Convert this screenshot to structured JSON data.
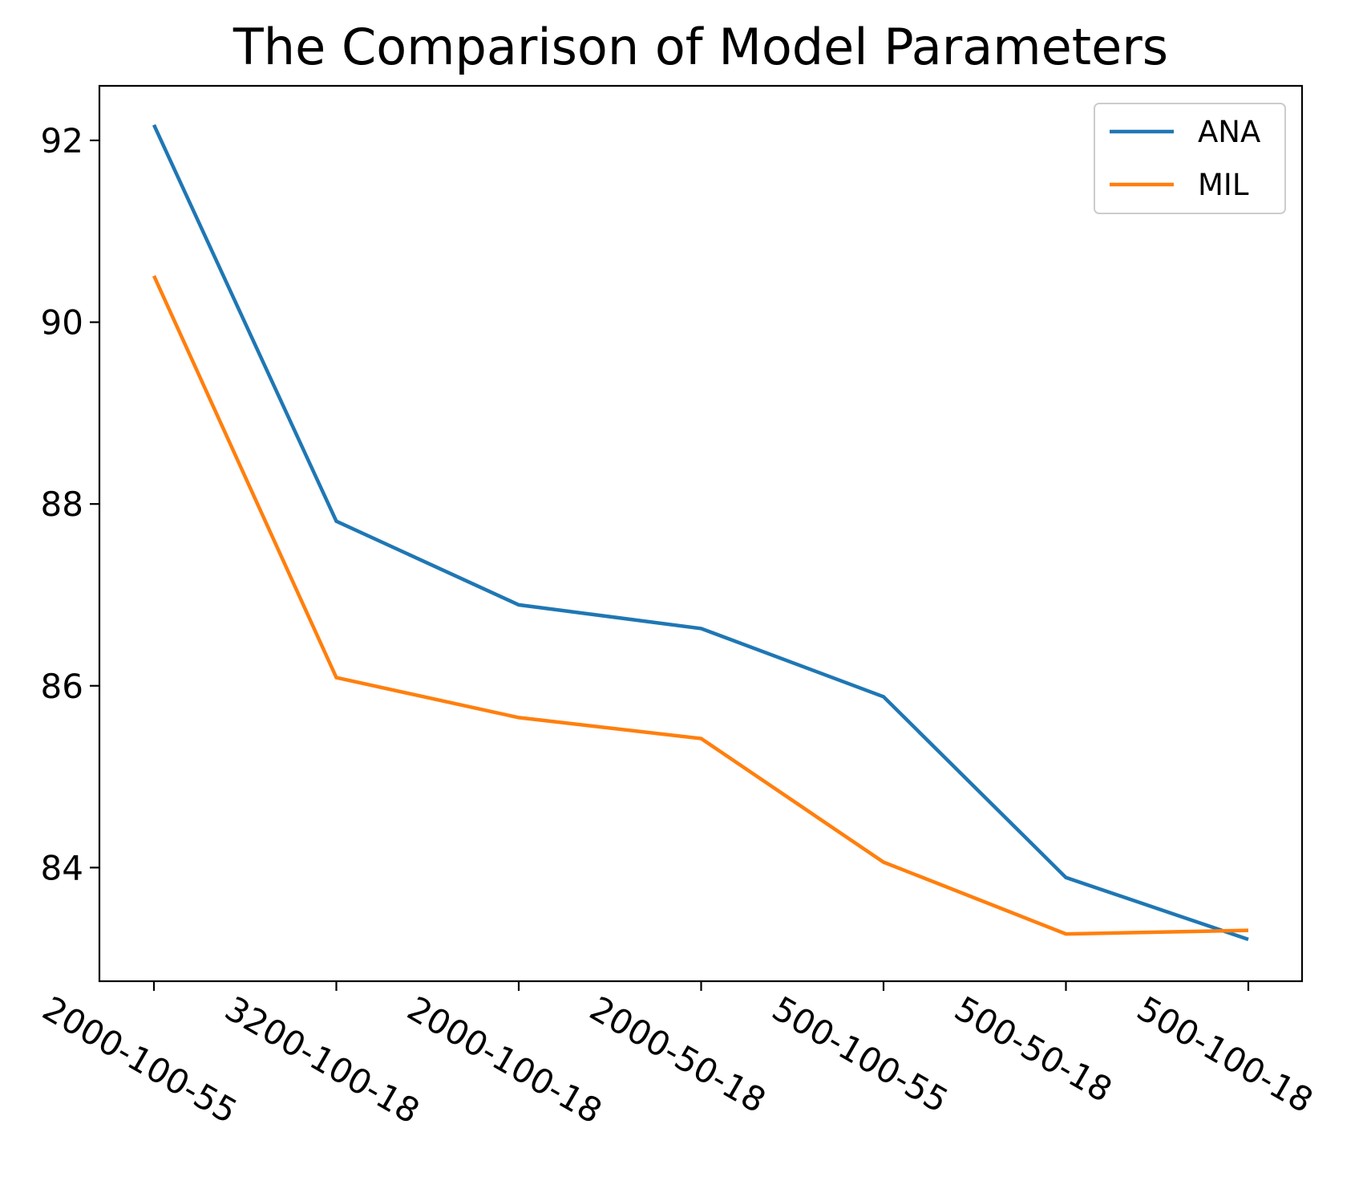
{
  "chart_data": {
    "type": "line",
    "title": "The Comparison of Model Parameters",
    "xlabel": "",
    "ylabel": "",
    "categories": [
      "2000-100-55",
      "3200-100-18",
      "2000-100-18",
      "2000-50-18",
      "500-100-55",
      "500-50-18",
      "500-100-18"
    ],
    "series": [
      {
        "name": "ANA",
        "color": "#1f77b4",
        "values": [
          92.17,
          87.81,
          86.89,
          86.63,
          85.88,
          83.89,
          83.21
        ]
      },
      {
        "name": "MIL",
        "color": "#ff7f0e",
        "values": [
          90.51,
          86.09,
          85.65,
          85.42,
          84.06,
          83.27,
          83.31
        ]
      }
    ],
    "ylim": [
      82.75,
      92.6
    ],
    "yticks": [
      "84",
      "86",
      "88",
      "90",
      "92"
    ],
    "legend_position": "upper-right",
    "grid": false
  }
}
